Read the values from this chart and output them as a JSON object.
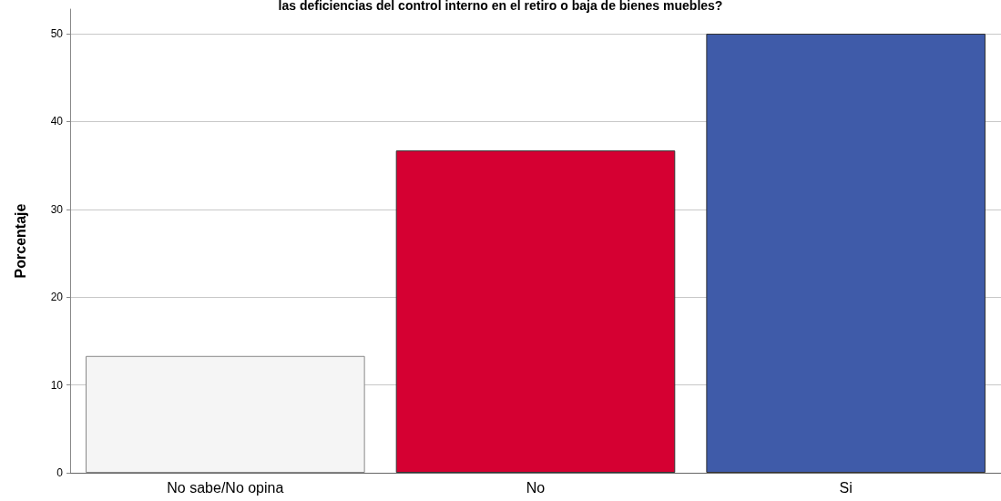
{
  "chart_data": {
    "type": "bar",
    "title": "las deficiencias del control interno en el retiro o baja de bienes muebles?",
    "ylabel": "Porcentaje",
    "categories": [
      "No sabe/No opina",
      "No",
      "Si"
    ],
    "values": [
      13.3,
      36.7,
      50
    ],
    "colors": [
      "#f5f5f5",
      "#d50032",
      "#3f5ba9"
    ],
    "ylim": [
      0,
      52.8
    ],
    "yticks": [
      0,
      10,
      20,
      30,
      40,
      50
    ],
    "grid": "y"
  }
}
